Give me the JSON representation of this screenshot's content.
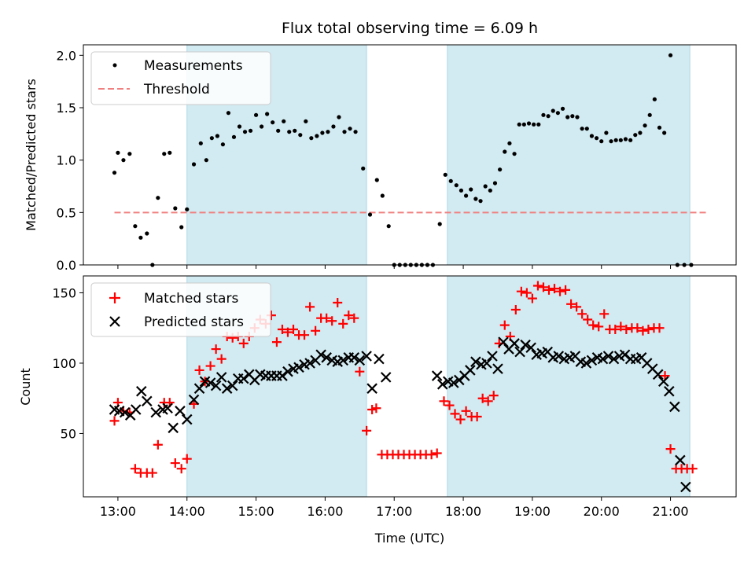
{
  "chart_data": {
    "type": "scatter",
    "title": "Flux total observing time = 6.09 h",
    "xlabel": "Time (UTC)",
    "x_ticks": [
      "13:00",
      "14:00",
      "15:00",
      "16:00",
      "17:00",
      "18:00",
      "19:00",
      "20:00",
      "21:00"
    ],
    "x_range_hours": [
      12.5,
      21.95
    ],
    "shaded_spans_hours": [
      [
        14.0,
        16.6
      ],
      [
        17.77,
        21.28
      ]
    ],
    "colors": {
      "span": "#add8e6",
      "measurements": "#000000",
      "threshold": "#f08080",
      "matched": "#ff0000",
      "predicted": "#000000"
    },
    "top": {
      "ylabel": "Matched/Predicted stars",
      "ylim": [
        0,
        2.1
      ],
      "y_ticks": [
        "0.0",
        "0.5",
        "1.0",
        "1.5",
        "2.0"
      ],
      "threshold": 0.5,
      "threshold_x": [
        12.95,
        21.55
      ],
      "legend": {
        "placement": "upper-left",
        "entries": [
          "Measurements",
          "Threshold"
        ]
      },
      "measurements": [
        [
          12.95,
          0.88
        ],
        [
          13.0,
          1.07
        ],
        [
          13.08,
          1.0
        ],
        [
          13.17,
          1.06
        ],
        [
          13.25,
          0.37
        ],
        [
          13.33,
          0.26
        ],
        [
          13.42,
          0.3
        ],
        [
          13.5,
          0.0
        ],
        [
          13.58,
          0.64
        ],
        [
          13.67,
          1.06
        ],
        [
          13.75,
          1.07
        ],
        [
          13.83,
          0.54
        ],
        [
          13.92,
          0.36
        ],
        [
          14.0,
          0.53
        ],
        [
          14.1,
          0.96
        ],
        [
          14.2,
          1.16
        ],
        [
          14.28,
          1.0
        ],
        [
          14.36,
          1.21
        ],
        [
          14.44,
          1.23
        ],
        [
          14.52,
          1.15
        ],
        [
          14.6,
          1.45
        ],
        [
          14.68,
          1.22
        ],
        [
          14.76,
          1.32
        ],
        [
          14.84,
          1.27
        ],
        [
          14.92,
          1.28
        ],
        [
          15.0,
          1.43
        ],
        [
          15.08,
          1.32
        ],
        [
          15.16,
          1.44
        ],
        [
          15.24,
          1.36
        ],
        [
          15.32,
          1.28
        ],
        [
          15.4,
          1.37
        ],
        [
          15.48,
          1.27
        ],
        [
          15.56,
          1.28
        ],
        [
          15.64,
          1.24
        ],
        [
          15.72,
          1.37
        ],
        [
          15.8,
          1.21
        ],
        [
          15.88,
          1.23
        ],
        [
          15.96,
          1.26
        ],
        [
          16.04,
          1.27
        ],
        [
          16.12,
          1.32
        ],
        [
          16.2,
          1.41
        ],
        [
          16.28,
          1.27
        ],
        [
          16.36,
          1.3
        ],
        [
          16.44,
          1.27
        ],
        [
          16.55,
          0.92
        ],
        [
          16.65,
          0.48
        ],
        [
          16.75,
          0.81
        ],
        [
          16.83,
          0.66
        ],
        [
          16.92,
          0.37
        ],
        [
          17.0,
          0.0
        ],
        [
          17.08,
          0.0
        ],
        [
          17.16,
          0.0
        ],
        [
          17.24,
          0.0
        ],
        [
          17.32,
          0.0
        ],
        [
          17.4,
          0.0
        ],
        [
          17.48,
          0.0
        ],
        [
          17.56,
          0.0
        ],
        [
          17.66,
          0.39
        ],
        [
          17.74,
          0.86
        ],
        [
          17.82,
          0.8
        ],
        [
          17.9,
          0.76
        ],
        [
          17.97,
          0.71
        ],
        [
          18.04,
          0.66
        ],
        [
          18.11,
          0.72
        ],
        [
          18.18,
          0.63
        ],
        [
          18.25,
          0.61
        ],
        [
          18.32,
          0.75
        ],
        [
          18.39,
          0.71
        ],
        [
          18.46,
          0.78
        ],
        [
          18.53,
          0.91
        ],
        [
          18.6,
          1.08
        ],
        [
          18.67,
          1.16
        ],
        [
          18.74,
          1.06
        ],
        [
          18.81,
          1.34
        ],
        [
          18.88,
          1.34
        ],
        [
          18.95,
          1.35
        ],
        [
          19.02,
          1.34
        ],
        [
          19.09,
          1.34
        ],
        [
          19.16,
          1.43
        ],
        [
          19.23,
          1.42
        ],
        [
          19.3,
          1.47
        ],
        [
          19.37,
          1.45
        ],
        [
          19.44,
          1.49
        ],
        [
          19.51,
          1.41
        ],
        [
          19.58,
          1.42
        ],
        [
          19.65,
          1.41
        ],
        [
          19.72,
          1.3
        ],
        [
          19.79,
          1.3
        ],
        [
          19.86,
          1.23
        ],
        [
          19.93,
          1.21
        ],
        [
          20.0,
          1.18
        ],
        [
          20.07,
          1.26
        ],
        [
          20.14,
          1.18
        ],
        [
          20.21,
          1.19
        ],
        [
          20.28,
          1.19
        ],
        [
          20.35,
          1.2
        ],
        [
          20.42,
          1.19
        ],
        [
          20.49,
          1.24
        ],
        [
          20.56,
          1.26
        ],
        [
          20.63,
          1.33
        ],
        [
          20.7,
          1.43
        ],
        [
          20.77,
          1.58
        ],
        [
          20.84,
          1.31
        ],
        [
          20.91,
          1.26
        ],
        [
          21.0,
          2.0
        ],
        [
          21.1,
          0.0
        ],
        [
          21.2,
          0.0
        ],
        [
          21.3,
          0.0
        ]
      ]
    },
    "bottom": {
      "ylabel": "Count",
      "ylim": [
        5,
        162
      ],
      "y_ticks": [
        "50",
        "100",
        "150"
      ],
      "legend": {
        "placement": "upper-left",
        "entries": [
          "Matched stars",
          "Predicted stars"
        ]
      },
      "matched": [
        [
          12.95,
          59
        ],
        [
          13.0,
          72
        ],
        [
          13.08,
          66
        ],
        [
          13.17,
          65
        ],
        [
          13.25,
          25
        ],
        [
          13.33,
          22
        ],
        [
          13.42,
          22
        ],
        [
          13.5,
          22
        ],
        [
          13.58,
          42
        ],
        [
          13.67,
          72
        ],
        [
          13.75,
          72
        ],
        [
          13.83,
          29
        ],
        [
          13.92,
          25
        ],
        [
          14.0,
          32
        ],
        [
          14.1,
          71
        ],
        [
          14.18,
          95
        ],
        [
          14.26,
          87
        ],
        [
          14.34,
          98
        ],
        [
          14.42,
          110
        ],
        [
          14.5,
          103
        ],
        [
          14.58,
          119
        ],
        [
          14.66,
          118
        ],
        [
          14.74,
          119
        ],
        [
          14.82,
          114
        ],
        [
          14.9,
          119
        ],
        [
          14.98,
          125
        ],
        [
          15.06,
          131
        ],
        [
          15.14,
          128
        ],
        [
          15.22,
          134
        ],
        [
          15.3,
          115
        ],
        [
          15.38,
          124
        ],
        [
          15.46,
          122
        ],
        [
          15.54,
          124
        ],
        [
          15.62,
          120
        ],
        [
          15.7,
          120
        ],
        [
          15.78,
          140
        ],
        [
          15.86,
          123
        ],
        [
          15.94,
          132
        ],
        [
          16.02,
          132
        ],
        [
          16.1,
          130
        ],
        [
          16.18,
          143
        ],
        [
          16.26,
          128
        ],
        [
          16.34,
          134
        ],
        [
          16.42,
          132
        ],
        [
          16.5,
          94
        ],
        [
          16.6,
          52
        ],
        [
          16.68,
          67
        ],
        [
          16.74,
          68
        ],
        [
          16.82,
          35
        ],
        [
          16.9,
          35
        ],
        [
          16.98,
          35
        ],
        [
          17.06,
          35
        ],
        [
          17.14,
          35
        ],
        [
          17.22,
          35
        ],
        [
          17.3,
          35
        ],
        [
          17.38,
          35
        ],
        [
          17.46,
          35
        ],
        [
          17.54,
          35
        ],
        [
          17.62,
          36
        ],
        [
          17.72,
          73
        ],
        [
          17.8,
          70
        ],
        [
          17.88,
          64
        ],
        [
          17.96,
          60
        ],
        [
          18.04,
          66
        ],
        [
          18.12,
          62
        ],
        [
          18.2,
          62
        ],
        [
          18.28,
          75
        ],
        [
          18.36,
          73
        ],
        [
          18.44,
          77
        ],
        [
          18.52,
          114
        ],
        [
          18.6,
          127
        ],
        [
          18.68,
          119
        ],
        [
          18.76,
          138
        ],
        [
          18.84,
          151
        ],
        [
          18.92,
          150
        ],
        [
          19.0,
          146
        ],
        [
          19.08,
          155
        ],
        [
          19.16,
          154
        ],
        [
          19.24,
          152
        ],
        [
          19.32,
          153
        ],
        [
          19.4,
          151
        ],
        [
          19.48,
          152
        ],
        [
          19.56,
          142
        ],
        [
          19.64,
          140
        ],
        [
          19.72,
          135
        ],
        [
          19.8,
          131
        ],
        [
          19.88,
          127
        ],
        [
          19.96,
          126
        ],
        [
          20.04,
          135
        ],
        [
          20.12,
          124
        ],
        [
          20.2,
          124
        ],
        [
          20.28,
          126
        ],
        [
          20.36,
          124
        ],
        [
          20.44,
          125
        ],
        [
          20.52,
          125
        ],
        [
          20.6,
          123
        ],
        [
          20.68,
          124
        ],
        [
          20.76,
          125
        ],
        [
          20.84,
          125
        ],
        [
          20.92,
          91
        ],
        [
          21.0,
          39
        ],
        [
          21.08,
          25
        ],
        [
          21.16,
          25
        ],
        [
          21.24,
          25
        ],
        [
          21.32,
          25
        ]
      ],
      "predicted": [
        [
          12.95,
          67
        ],
        [
          13.02,
          66
        ],
        [
          13.1,
          65
        ],
        [
          13.18,
          63
        ],
        [
          13.26,
          67
        ],
        [
          13.34,
          80
        ],
        [
          13.42,
          73
        ],
        [
          13.55,
          65
        ],
        [
          13.65,
          67
        ],
        [
          13.72,
          68
        ],
        [
          13.8,
          54
        ],
        [
          13.9,
          66
        ],
        [
          14.0,
          60
        ],
        [
          14.1,
          74
        ],
        [
          14.18,
          82
        ],
        [
          14.26,
          87
        ],
        [
          14.34,
          86
        ],
        [
          14.42,
          84
        ],
        [
          14.5,
          90
        ],
        [
          14.58,
          82
        ],
        [
          14.66,
          84
        ],
        [
          14.74,
          89
        ],
        [
          14.82,
          89
        ],
        [
          14.9,
          92
        ],
        [
          14.98,
          88
        ],
        [
          15.06,
          92
        ],
        [
          15.14,
          91
        ],
        [
          15.22,
          91
        ],
        [
          15.3,
          91
        ],
        [
          15.38,
          91
        ],
        [
          15.46,
          94
        ],
        [
          15.54,
          96
        ],
        [
          15.62,
          97
        ],
        [
          15.7,
          99
        ],
        [
          15.78,
          100
        ],
        [
          15.86,
          102
        ],
        [
          15.94,
          106
        ],
        [
          16.02,
          104
        ],
        [
          16.1,
          102
        ],
        [
          16.18,
          101
        ],
        [
          16.26,
          102
        ],
        [
          16.34,
          104
        ],
        [
          16.42,
          104
        ],
        [
          16.5,
          102
        ],
        [
          16.6,
          105
        ],
        [
          16.68,
          82
        ],
        [
          16.78,
          103
        ],
        [
          16.88,
          90
        ],
        [
          17.62,
          91
        ],
        [
          17.7,
          85
        ],
        [
          17.78,
          87
        ],
        [
          17.86,
          86
        ],
        [
          17.94,
          88
        ],
        [
          18.02,
          91
        ],
        [
          18.1,
          95
        ],
        [
          18.18,
          101
        ],
        [
          18.26,
          99
        ],
        [
          18.34,
          100
        ],
        [
          18.42,
          105
        ],
        [
          18.5,
          96
        ],
        [
          18.58,
          115
        ],
        [
          18.66,
          110
        ],
        [
          18.74,
          114
        ],
        [
          18.82,
          108
        ],
        [
          18.9,
          113
        ],
        [
          18.98,
          111
        ],
        [
          19.06,
          106
        ],
        [
          19.14,
          107
        ],
        [
          19.22,
          108
        ],
        [
          19.3,
          104
        ],
        [
          19.38,
          105
        ],
        [
          19.46,
          103
        ],
        [
          19.54,
          104
        ],
        [
          19.62,
          105
        ],
        [
          19.7,
          101
        ],
        [
          19.78,
          100
        ],
        [
          19.86,
          102
        ],
        [
          19.94,
          104
        ],
        [
          20.02,
          103
        ],
        [
          20.1,
          105
        ],
        [
          20.18,
          103
        ],
        [
          20.26,
          105
        ],
        [
          20.34,
          106
        ],
        [
          20.42,
          103
        ],
        [
          20.5,
          103
        ],
        [
          20.58,
          104
        ],
        [
          20.66,
          100
        ],
        [
          20.74,
          96
        ],
        [
          20.82,
          92
        ],
        [
          20.9,
          87
        ],
        [
          20.98,
          80
        ],
        [
          21.06,
          69
        ],
        [
          21.14,
          31
        ],
        [
          21.22,
          12
        ]
      ]
    }
  }
}
